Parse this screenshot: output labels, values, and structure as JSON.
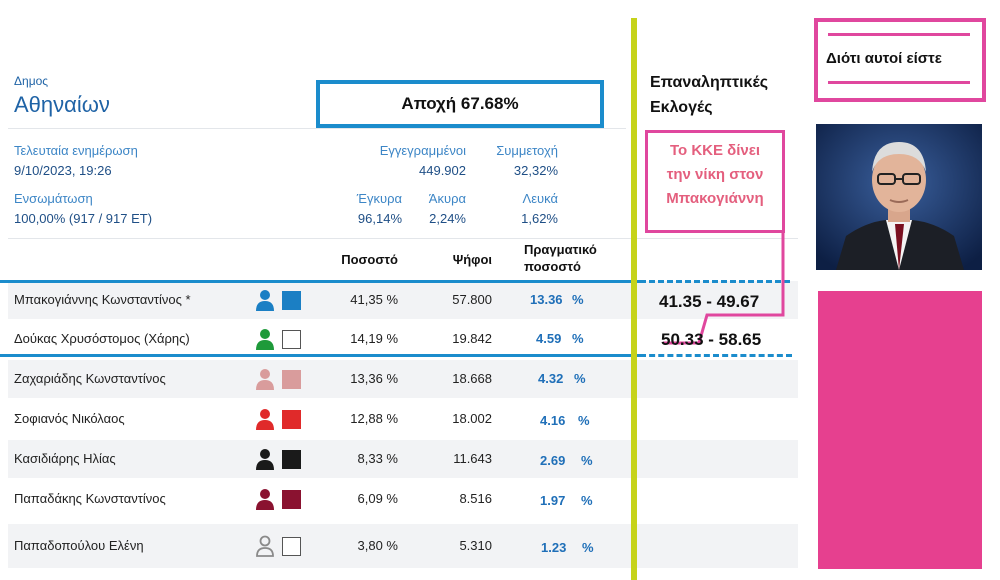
{
  "municipality": {
    "label": "Δημος",
    "name": "Αθηναίων"
  },
  "abstention": "Αποχή 67.68%",
  "last_update": {
    "label": "Τελευταία ενημέρωση",
    "value": "9/10/2023, 19:26"
  },
  "registered": {
    "label": "Εγγεγραμμένοι",
    "value": "449.902"
  },
  "turnout": {
    "label": "Συμμετοχή",
    "value": "32,32%"
  },
  "integration": {
    "label": "Ενσωμάτωση",
    "value": "100,00% (917 / 917 ΕΤ)"
  },
  "valid": {
    "label": "Έγκυρα",
    "value": "96,14%"
  },
  "invalid": {
    "label": "Άκυρα",
    "value": "2,24%"
  },
  "blank": {
    "label": "Λευκά",
    "value": "1,62%"
  },
  "columns": {
    "percent": "Ποσοστό",
    "votes": "Ψήφοι",
    "real_percent_line1": "Πραγματικό",
    "real_percent_line2": "ποσοστό"
  },
  "candidates": [
    {
      "name": "Μπακογιάννης Κωνσταντίνος *",
      "percent": "41,35 %",
      "votes": "57.800",
      "real": "13.36",
      "unit": "%",
      "color": "#1b7fc4",
      "square_fill": "#1b7fc4"
    },
    {
      "name": "Δούκας Χρυσόστομος (Χάρης)",
      "percent": "14,19 %",
      "votes": "19.842",
      "real": "4.59",
      "unit": "%",
      "color": "#1e9a3a",
      "square_fill": "#ffffff"
    },
    {
      "name": "Ζαχαριάδης Κωνσταντίνος",
      "percent": "13,36 %",
      "votes": "18.668",
      "real": "4.32",
      "unit": "%",
      "color": "#d99c9c",
      "square_fill": "#d99c9c"
    },
    {
      "name": "Σοφιανός Νικόλαος",
      "percent": "12,88 %",
      "votes": "18.002",
      "real": "4.16",
      "unit": "%",
      "color": "#e02a2a",
      "square_fill": "#e02a2a"
    },
    {
      "name": "Κασιδιάρης Ηλίας",
      "percent": "8,33 %",
      "votes": "11.643",
      "real": "2.69",
      "unit": "%",
      "color": "#1a1a1a",
      "square_fill": "#1a1a1a"
    },
    {
      "name": "Παπαδάκης Κωνσταντίνος",
      "percent": "6,09 %",
      "votes": "8.516",
      "real": "1.97",
      "unit": "%",
      "color": "#8a1230",
      "square_fill": "#8a1230"
    },
    {
      "name": "Παπαδοπούλου Ελένη",
      "percent": "3,80 %",
      "votes": "5.310",
      "real": "1.23",
      "unit": "%",
      "color": "#8a8a8a",
      "square_fill": "#ffffff"
    }
  ],
  "runoff": {
    "line1": "Επαναληπτικές",
    "line2": "Εκλογές"
  },
  "kke": {
    "line1": "Το ΚΚΕ δίνει",
    "line2": "την νίκη στον",
    "line3": "Μπακογιάννη"
  },
  "range1": "41.35  - 49.67",
  "range2_a": "50.33",
  "range2_b": " - 58.65",
  "slogan": "Διότι αυτοί είστε",
  "colors": {
    "accent_blue": "#1b8ccc",
    "pink": "#e0479e",
    "yellow": "#c6d31a"
  }
}
